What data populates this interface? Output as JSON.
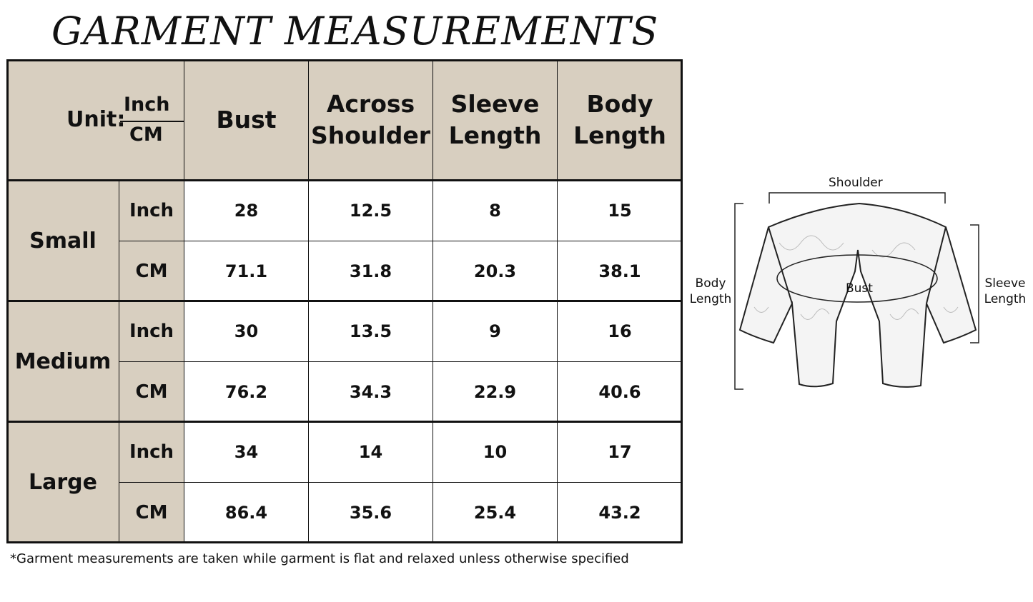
{
  "title": "GARMENT MEASUREMENTS",
  "table": {
    "unit_label": "Unit:",
    "unit_top": "Inch",
    "unit_bottom": "CM",
    "columns": [
      {
        "line1": "Bust",
        "line2": ""
      },
      {
        "line1": "Across",
        "line2": "Shoulder"
      },
      {
        "line1": "Sleeve",
        "line2": "Length"
      },
      {
        "line1": "Body",
        "line2": "Length"
      }
    ],
    "sizes": [
      {
        "name": "Small",
        "rows": [
          {
            "unit": "Inch",
            "values": [
              "28",
              "12.5",
              "8",
              "15"
            ]
          },
          {
            "unit": "CM",
            "values": [
              "71.1",
              "31.8",
              "20.3",
              "38.1"
            ]
          }
        ]
      },
      {
        "name": "Medium",
        "rows": [
          {
            "unit": "Inch",
            "values": [
              "30",
              "13.5",
              "9",
              "16"
            ]
          },
          {
            "unit": "CM",
            "values": [
              "76.2",
              "34.3",
              "22.9",
              "40.6"
            ]
          }
        ]
      },
      {
        "name": "Large",
        "rows": [
          {
            "unit": "Inch",
            "values": [
              "34",
              "14",
              "10",
              "17"
            ]
          },
          {
            "unit": "CM",
            "values": [
              "86.4",
              "35.6",
              "25.4",
              "43.2"
            ]
          }
        ]
      }
    ],
    "header_color": "#d8cfc0"
  },
  "note": "*Garment measurements are taken while garment is flat and relaxed unless otherwise specified",
  "diagram": {
    "shoulder": "Shoulder",
    "bust": "Bust",
    "body_length_1": "Body",
    "body_length_2": "Length",
    "sleeve_length_1": "Sleeve",
    "sleeve_length_2": "Length"
  }
}
